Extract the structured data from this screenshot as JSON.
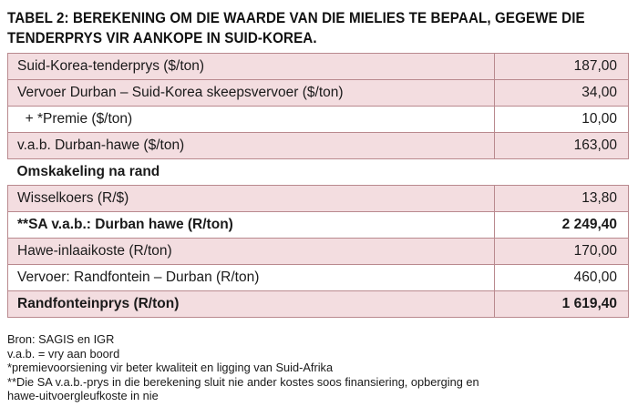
{
  "title": {
    "line1": "TABEL 2: BEREKENING OM DIE WAARDE VAN DIE MIELIES TE BEPAAL, GEGEWE DIE",
    "line2": "TENDERPRYS VIR AANKOPE IN SUID-KOREA."
  },
  "rows": [
    {
      "label": "Suid-Korea-tenderprys ($/ton)",
      "value": "187,00"
    },
    {
      "label": "Vervoer Durban – Suid-Korea skeepsvervoer ($/ton)",
      "value": "34,00"
    },
    {
      "label": "  + *Premie ($/ton)",
      "value": "10,00"
    },
    {
      "label": "v.a.b. Durban-hawe ($/ton)",
      "value": "163,00"
    },
    {
      "label": "Omskakeling na rand",
      "value": ""
    },
    {
      "label": "Wisselkoers (R/$)",
      "value": "13,80"
    },
    {
      "label": "**SA v.a.b.: Durban hawe (R/ton)",
      "value": "2 249,40"
    },
    {
      "label": "Hawe-inlaaikoste (R/ton)",
      "value": "170,00"
    },
    {
      "label": "Vervoer: Randfontein – Durban (R/ton)",
      "value": "460,00"
    },
    {
      "label": "Randfonteinprys (R/ton)",
      "value": "1 619,40"
    }
  ],
  "notes": {
    "source": "Bron: SAGIS en IGR",
    "abbrev": "v.a.b. = vry aan boord",
    "note1": "*premievoorsiening vir beter kwaliteit en ligging van Suid-Afrika",
    "note2_line1": "**Die SA v.a.b.-prys in die berekening sluit nie ander kostes soos finansiering, opberging en",
    "note2_line2": "hawe-uitvoergleufkoste in nie"
  },
  "colors": {
    "row_tint": "#f3dde0",
    "border": "#b9898e"
  }
}
